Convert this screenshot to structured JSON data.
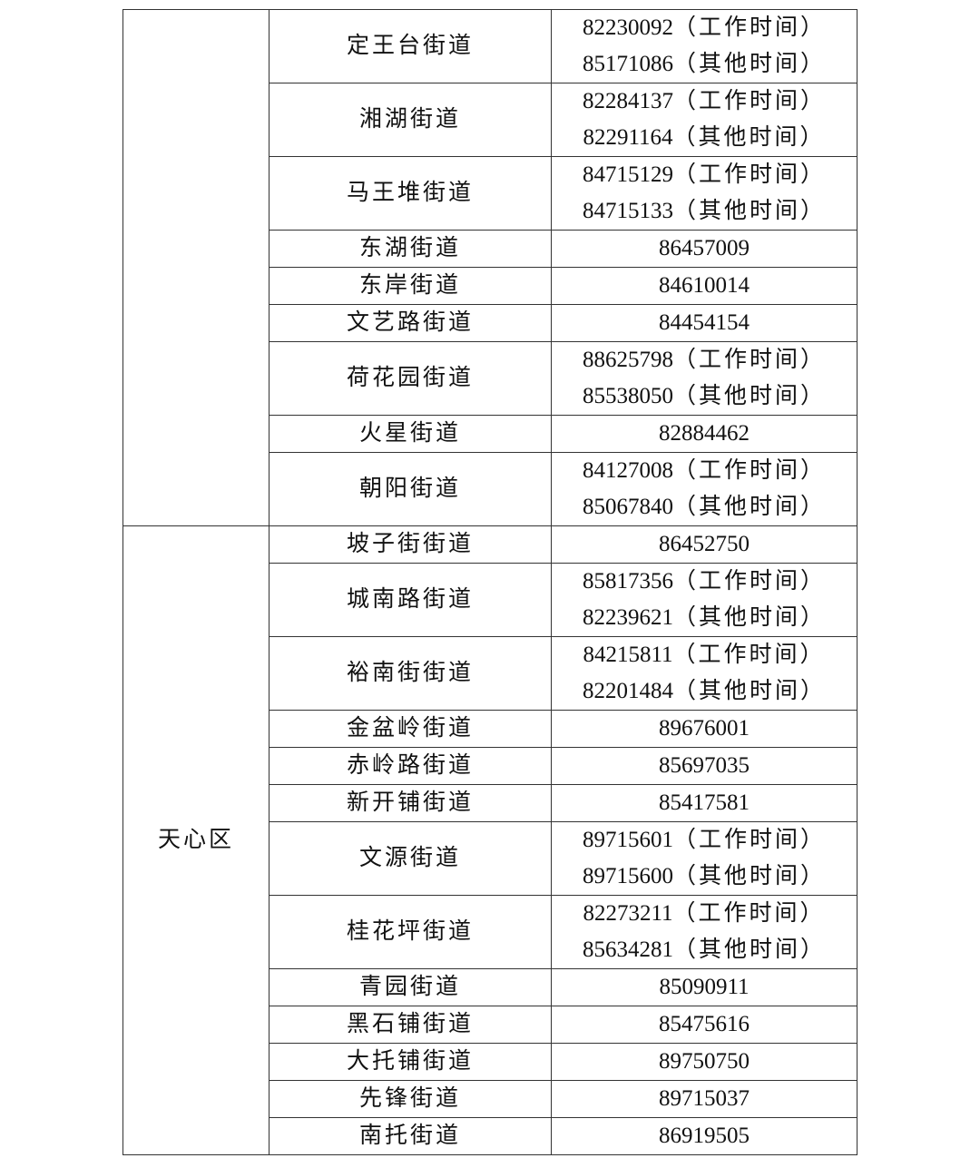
{
  "table": {
    "sections": [
      {
        "district": "",
        "rows": [
          {
            "street": "定王台街道",
            "phones": [
              {
                "number": "82230092",
                "note": "（工作时间）"
              },
              {
                "number": "85171086",
                "note": "（其他时间）"
              }
            ]
          },
          {
            "street": "湘湖街道",
            "phones": [
              {
                "number": "82284137",
                "note": "（工作时间）"
              },
              {
                "number": "82291164",
                "note": "（其他时间）"
              }
            ]
          },
          {
            "street": "马王堆街道",
            "phones": [
              {
                "number": "84715129",
                "note": "（工作时间）"
              },
              {
                "number": "84715133",
                "note": "（其他时间）"
              }
            ]
          },
          {
            "street": "东湖街道",
            "phones": [
              {
                "number": "86457009",
                "note": ""
              }
            ]
          },
          {
            "street": "东岸街道",
            "phones": [
              {
                "number": "84610014",
                "note": ""
              }
            ]
          },
          {
            "street": "文艺路街道",
            "phones": [
              {
                "number": "84454154",
                "note": ""
              }
            ]
          },
          {
            "street": "荷花园街道",
            "phones": [
              {
                "number": "88625798",
                "note": "（工作时间）"
              },
              {
                "number": "85538050",
                "note": "（其他时间）"
              }
            ]
          },
          {
            "street": "火星街道",
            "phones": [
              {
                "number": "82884462",
                "note": ""
              }
            ]
          },
          {
            "street": "朝阳街道",
            "phones": [
              {
                "number": "84127008",
                "note": "（工作时间）"
              },
              {
                "number": "85067840",
                "note": "（其他时间）"
              }
            ]
          }
        ]
      },
      {
        "district": "天心区",
        "rows": [
          {
            "street": "坡子街街道",
            "phones": [
              {
                "number": "86452750",
                "note": ""
              }
            ]
          },
          {
            "street": "城南路街道",
            "phones": [
              {
                "number": "85817356",
                "note": "（工作时间）"
              },
              {
                "number": "82239621",
                "note": "（其他时间）"
              }
            ]
          },
          {
            "street": "裕南街街道",
            "phones": [
              {
                "number": "84215811",
                "note": "（工作时间）"
              },
              {
                "number": "82201484",
                "note": "（其他时间）"
              }
            ]
          },
          {
            "street": "金盆岭街道",
            "phones": [
              {
                "number": "89676001",
                "note": ""
              }
            ]
          },
          {
            "street": "赤岭路街道",
            "phones": [
              {
                "number": "85697035",
                "note": ""
              }
            ]
          },
          {
            "street": "新开铺街道",
            "phones": [
              {
                "number": "85417581",
                "note": ""
              }
            ]
          },
          {
            "street": "文源街道",
            "phones": [
              {
                "number": "89715601",
                "note": "（工作时间）"
              },
              {
                "number": "89715600",
                "note": "（其他时间）"
              }
            ]
          },
          {
            "street": "桂花坪街道",
            "phones": [
              {
                "number": "82273211",
                "note": "（工作时间）"
              },
              {
                "number": "85634281",
                "note": "（其他时间）"
              }
            ]
          },
          {
            "street": "青园街道",
            "phones": [
              {
                "number": "85090911",
                "note": ""
              }
            ]
          },
          {
            "street": "黑石铺街道",
            "phones": [
              {
                "number": "85475616",
                "note": ""
              }
            ]
          },
          {
            "street": "大托铺街道",
            "phones": [
              {
                "number": "89750750",
                "note": ""
              }
            ]
          },
          {
            "street": "先锋街道",
            "phones": [
              {
                "number": "89715037",
                "note": ""
              }
            ]
          },
          {
            "street": "南托街道",
            "phones": [
              {
                "number": "86919505",
                "note": ""
              }
            ]
          }
        ]
      }
    ]
  }
}
